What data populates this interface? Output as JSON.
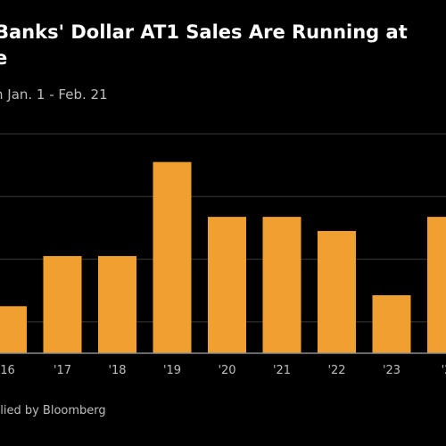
{
  "header": {
    "title_line1": "Banks' Dollar AT1 Sales Are Running at",
    "title_line2": "e",
    "subtitle": "n Jan. 1 - Feb. 21"
  },
  "footer": {
    "source": "plied by Bloomberg"
  },
  "colors": {
    "bar": "#f0a030",
    "background": "#000000",
    "grid": "#3a3a3a"
  },
  "chart_data": {
    "type": "bar",
    "title": "Banks' Dollar AT1 Sales Are Running at",
    "subtitle": "n Jan. 1 - Feb. 21",
    "categories": [
      "16",
      "'17",
      "'18",
      "'19",
      "'20",
      "'21",
      "'22",
      "'23",
      "'2"
    ],
    "values": [
      3,
      6.2,
      6.2,
      12.2,
      8.7,
      8.7,
      7.8,
      3.7,
      8.7
    ],
    "ylim": [
      0,
      14
    ],
    "grid": true,
    "legend": "none"
  }
}
